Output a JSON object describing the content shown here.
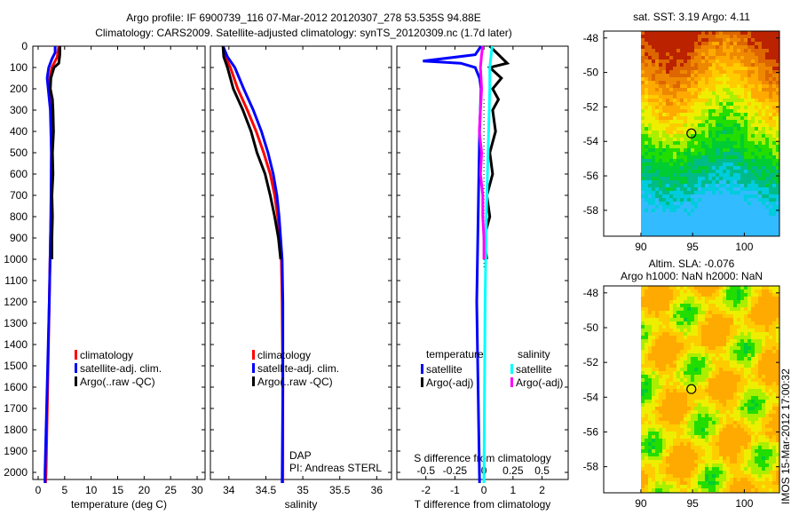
{
  "figure": {
    "title_line1": "Argo profile: IF 6900739_116 07-Mar-2012 20120307_278 53.535S 94.88E",
    "title_line2": "Climatology: CARS2009. Satellite-adjusted climatology: synTS_20120309.nc (1.7d later)",
    "side_stamp": "IMOS 15-Mar-2012 17:00:32",
    "dap_label": "DAP",
    "pi_label": "PI: Andreas STERL"
  },
  "colors": {
    "climatology": "#ff0000",
    "satellite": "#0000ff",
    "argo": "#000000",
    "sal_satellite": "#00ffff",
    "sal_argo": "#ff00ff"
  },
  "chart_data": [
    {
      "type": "line",
      "id": "temperature",
      "xlabel": "temperature (deg C)",
      "ylabel": "",
      "xlim": [
        -1,
        31.5
      ],
      "ylim": [
        2050,
        0
      ],
      "xticks": [
        0,
        5,
        10,
        15,
        20,
        25,
        30
      ],
      "yticks": [
        0,
        100,
        200,
        300,
        400,
        500,
        600,
        700,
        800,
        900,
        1000,
        1100,
        1200,
        1300,
        1400,
        1500,
        1600,
        1700,
        1800,
        1900,
        2000
      ],
      "legend": [
        "climatology",
        "satellite-adj. clim.",
        "Argo(..raw -QC)"
      ],
      "series": [
        {
          "name": "climatology",
          "color": "#ff0000",
          "depth": [
            0,
            50,
            100,
            150,
            200,
            300,
            500,
            800,
            1200,
            1600,
            2000,
            2050
          ],
          "value": [
            3.9,
            3.6,
            2.6,
            2.2,
            2.1,
            2.4,
            2.5,
            2.4,
            2.1,
            1.8,
            1.5,
            1.4
          ]
        },
        {
          "name": "satellite-adj. clim.",
          "color": "#0000ff",
          "depth": [
            0,
            30,
            60,
            100,
            150,
            200,
            300,
            500,
            800,
            1200,
            1600,
            2000,
            2050
          ],
          "value": [
            3.2,
            3.2,
            2.6,
            2.0,
            1.7,
            1.9,
            2.3,
            2.5,
            2.4,
            2.1,
            1.7,
            1.3,
            1.3
          ]
        },
        {
          "name": "Argo(..raw -QC)",
          "color": "#000000",
          "depth": [
            0,
            40,
            80,
            100,
            150,
            200,
            250,
            300,
            400,
            500,
            600,
            700,
            800,
            900,
            1000
          ],
          "value": [
            4.1,
            4.1,
            3.9,
            3.0,
            2.4,
            2.3,
            2.7,
            2.8,
            2.9,
            2.7,
            2.8,
            2.6,
            2.7,
            2.6,
            2.6
          ]
        }
      ]
    },
    {
      "type": "line",
      "id": "salinity",
      "xlabel": "salinity",
      "xlim": [
        33.75,
        36.2
      ],
      "ylim": [
        2050,
        0
      ],
      "xticks": [
        34,
        34.5,
        35,
        35.5,
        36
      ],
      "legend": [
        "climatology",
        "satellite-adj. clim.",
        "Argo(..raw -QC)"
      ],
      "series": [
        {
          "name": "climatology",
          "color": "#ff0000",
          "depth": [
            0,
            50,
            100,
            200,
            300,
            400,
            500,
            600,
            700,
            800,
            900,
            1000,
            1200,
            1600,
            2050
          ],
          "value": [
            33.92,
            33.95,
            34.02,
            34.12,
            34.25,
            34.37,
            34.47,
            34.56,
            34.62,
            34.66,
            34.69,
            34.71,
            34.72,
            34.73,
            34.73
          ]
        },
        {
          "name": "satellite-adj. clim.",
          "color": "#0000ff",
          "depth": [
            0,
            50,
            100,
            200,
            300,
            400,
            500,
            600,
            700,
            800,
            900,
            1000,
            1200,
            1600,
            2050
          ],
          "value": [
            33.92,
            33.98,
            34.08,
            34.2,
            34.33,
            34.44,
            34.53,
            34.6,
            34.65,
            34.68,
            34.7,
            34.72,
            34.73,
            34.73,
            34.72
          ]
        },
        {
          "name": "Argo(..raw -QC)",
          "color": "#000000",
          "depth": [
            0,
            50,
            100,
            200,
            300,
            400,
            500,
            600,
            700,
            800,
            900,
            1000
          ],
          "value": [
            33.92,
            33.93,
            33.98,
            34.06,
            34.19,
            34.3,
            34.38,
            34.49,
            34.56,
            34.62,
            34.67,
            34.7
          ]
        }
      ]
    },
    {
      "type": "line",
      "id": "differences",
      "xlabel": "T difference from climatology",
      "x2label": "S difference from climatology",
      "xlim": [
        -3.0,
        2.9
      ],
      "x2lim": [
        -0.75,
        0.725
      ],
      "ylim": [
        2050,
        0
      ],
      "xticks": [
        -2,
        -1,
        0,
        1,
        2
      ],
      "x2ticks": [
        -0.5,
        -0.25,
        0,
        0.25,
        0.5
      ],
      "legend_temperature_title": "temperature",
      "legend_salinity_title": "salinity",
      "legend": [
        "satellite",
        "Argo(-adj)",
        "satellite",
        "Argo(-adj)"
      ],
      "series": [
        {
          "name": "T satellite",
          "color": "#0000ff",
          "axis": "T",
          "depth": [
            0,
            40,
            60,
            70,
            80,
            100,
            150,
            200,
            400,
            800,
            1200,
            2050
          ],
          "value": [
            -0.1,
            -0.3,
            -1.5,
            -2.1,
            -0.8,
            -0.3,
            -0.15,
            -0.1,
            -0.15,
            -0.2,
            -0.25,
            -0.15
          ]
        },
        {
          "name": "T Argo(-adj)",
          "color": "#000000",
          "axis": "T",
          "depth": [
            0,
            40,
            80,
            100,
            150,
            200,
            250,
            300,
            400,
            500,
            600,
            700,
            800,
            900,
            1000
          ],
          "value": [
            0.2,
            0.5,
            0.8,
            0.2,
            0.6,
            0.3,
            0.5,
            0.3,
            0.4,
            0.2,
            0.3,
            0.1,
            0.2,
            0.0,
            0.1
          ]
        },
        {
          "name": "S satellite",
          "color": "#00ffff",
          "axis": "S",
          "depth": [
            0,
            50,
            100,
            200,
            400,
            800,
            1200,
            2050
          ],
          "value": [
            0.07,
            0.06,
            0.05,
            0.05,
            0.04,
            0.02,
            0.01,
            0.0
          ]
        },
        {
          "name": "S Argo(-adj)",
          "color": "#ff00ff",
          "axis": "S",
          "depth": [
            0,
            40,
            100,
            200,
            300,
            400,
            500,
            600,
            700,
            800,
            900,
            1000
          ],
          "value": [
            -0.01,
            -0.02,
            -0.03,
            -0.02,
            -0.03,
            -0.04,
            -0.02,
            -0.03,
            -0.01,
            -0.01,
            0.0,
            0.0
          ]
        }
      ]
    },
    {
      "type": "heatmap",
      "id": "sst_map",
      "title": "sat. SST: 3.19 Argo: 4.11",
      "xlim": [
        86.4,
        103.4
      ],
      "ylim": [
        -59.5,
        -47.6
      ],
      "xticks": [
        90,
        95,
        100
      ],
      "yticks": [
        -48,
        -50,
        -52,
        -54,
        -56,
        -58
      ],
      "argo_position": [
        94.88,
        -53.535
      ]
    },
    {
      "type": "heatmap",
      "id": "sla_map",
      "title_line1": "Altim. SLA: -0.076",
      "title_line2": "Argo h1000: NaN h2000: NaN",
      "xlim": [
        86.4,
        103.4
      ],
      "ylim": [
        -59.5,
        -47.6
      ],
      "xticks": [
        90,
        95,
        100
      ],
      "yticks": [
        -48,
        -50,
        -52,
        -54,
        -56,
        -58
      ],
      "argo_position": [
        94.88,
        -53.535
      ]
    }
  ]
}
